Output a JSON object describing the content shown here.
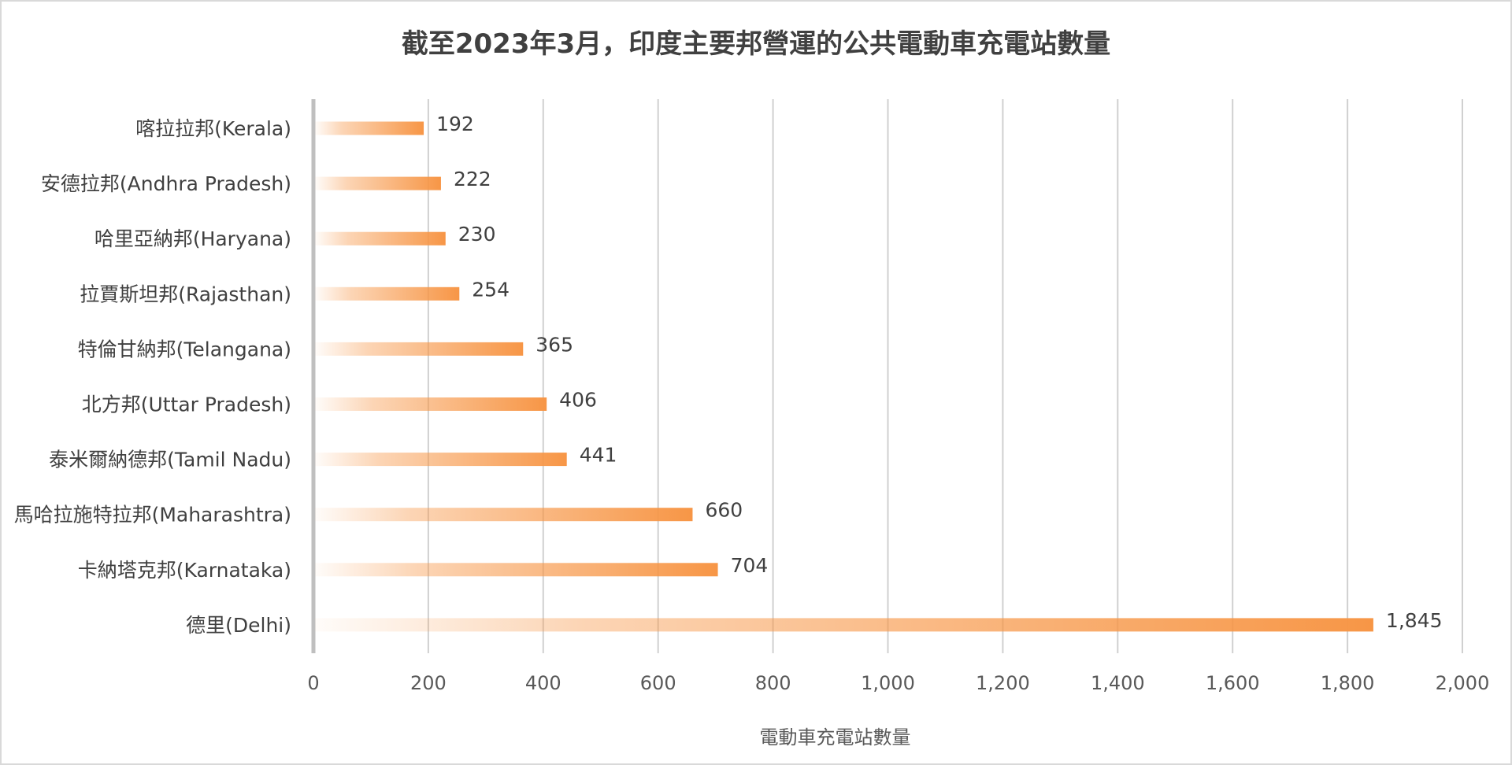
{
  "chart_data": {
    "type": "bar",
    "orientation": "horizontal",
    "title": "截至2023年3月，印度主要邦營運的公共電動車充電站數量",
    "xlabel": "電動車充電站數量",
    "ylabel": "",
    "categories": [
      "喀拉拉邦(Kerala)",
      "安德拉邦(Andhra Pradesh)",
      "哈里亞納邦(Haryana)",
      "拉賈斯坦邦(Rajasthan)",
      "特倫甘納邦(Telangana)",
      "北方邦(Uttar Pradesh)",
      "泰米爾納德邦(Tamil Nadu)",
      "馬哈拉施特拉邦(Maharashtra)",
      "卡納塔克邦(Karnataka)",
      "德里(Delhi)"
    ],
    "values": [
      192,
      222,
      230,
      254,
      365,
      406,
      441,
      660,
      704,
      1845
    ],
    "data_labels": [
      "192",
      "222",
      "230",
      "254",
      "365",
      "406",
      "441",
      "660",
      "704",
      "1,845"
    ],
    "xlim": [
      0,
      2000
    ],
    "xticks": [
      0,
      200,
      400,
      600,
      800,
      1000,
      1200,
      1400,
      1600,
      1800,
      2000
    ],
    "xtick_labels": [
      "0",
      "200",
      "400",
      "600",
      "800",
      "1,000",
      "1,200",
      "1,400",
      "1,600",
      "1,800",
      "2,000"
    ],
    "grid": "vertical",
    "legend": "none",
    "bar_color": "#f79646",
    "bar_fill": "gradient"
  }
}
